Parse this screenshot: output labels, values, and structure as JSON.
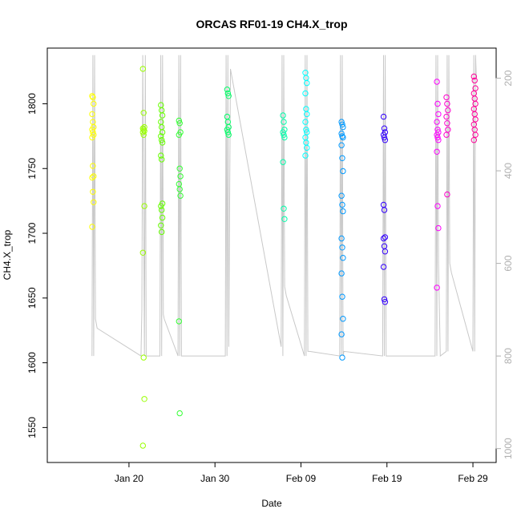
{
  "chart_data": {
    "type": "scatter",
    "title": "ORCAS RF01-19 CH4.X_trop",
    "xlabel": "Date",
    "ylabel": "CH4.X_trop",
    "x_ticks": [
      {
        "label": "Jan 20",
        "day": 19
      },
      {
        "label": "Jan 30",
        "day": 29
      },
      {
        "label": "Feb 09",
        "day": 39
      },
      {
        "label": "Feb 19",
        "day": 49
      },
      {
        "label": "Feb 29",
        "day": 59
      }
    ],
    "xlim_days": [
      9.5,
      61.7
    ],
    "ylim": [
      1523,
      1843
    ],
    "y_ticks": [
      1550,
      1600,
      1650,
      1700,
      1750,
      1800
    ],
    "right_axis": {
      "ticks": [
        200,
        400,
        600,
        800,
        1000
      ],
      "range": [
        1030,
        135
      ],
      "color": "#b0b0b0"
    },
    "flights": [
      {
        "day": 14.8,
        "color": "#ffff00",
        "values": [
          1806,
          1805,
          1800,
          1792,
          1786,
          1782,
          1780,
          1778,
          1776,
          1774,
          1752,
          1744,
          1743,
          1732,
          1724,
          1705
        ]
      },
      {
        "day": 20.7,
        "color": "#99ff00",
        "values": [
          1827,
          1793,
          1782,
          1781,
          1780,
          1779,
          1778,
          1776,
          1721,
          1685,
          1604,
          1572,
          1536
        ]
      },
      {
        "day": 22.8,
        "color": "#66ff00",
        "values": [
          1799,
          1795,
          1791,
          1786,
          1782,
          1778,
          1775,
          1772,
          1770,
          1760,
          1757,
          1723,
          1721,
          1718,
          1712,
          1706,
          1701
        ]
      },
      {
        "day": 24.9,
        "color": "#33ff33",
        "values": [
          1787,
          1785,
          1778,
          1776,
          1750,
          1744,
          1738,
          1734,
          1729,
          1632,
          1561
        ]
      },
      {
        "day": 30.5,
        "color": "#00ff66",
        "values": [
          1811,
          1808,
          1806,
          1790,
          1786,
          1782,
          1780,
          1778,
          1776
        ]
      },
      {
        "day": 37.0,
        "color": "#00ffaa",
        "values": [
          1791,
          1786,
          1780,
          1778,
          1776,
          1774,
          1755,
          1719,
          1711
        ]
      },
      {
        "day": 39.6,
        "color": "#00ffff",
        "values": [
          1824,
          1820,
          1816,
          1808,
          1796,
          1792,
          1786,
          1780,
          1778,
          1774,
          1770,
          1766,
          1760
        ]
      },
      {
        "day": 43.8,
        "color": "#0099ff",
        "values": [
          1786,
          1784,
          1782,
          1777,
          1775,
          1774,
          1768,
          1758,
          1748,
          1729,
          1722,
          1717,
          1696,
          1689,
          1681,
          1669,
          1651,
          1634,
          1622,
          1604
        ]
      },
      {
        "day": 48.7,
        "color": "#3300ff",
        "values": [
          1790,
          1781,
          1778,
          1776,
          1774,
          1772,
          1722,
          1718,
          1697,
          1696,
          1690,
          1686,
          1674,
          1649,
          1647
        ]
      },
      {
        "day": 54.9,
        "color": "#ff00ff",
        "values": [
          1817,
          1800,
          1792,
          1786,
          1780,
          1778,
          1776,
          1774,
          1772,
          1763,
          1721,
          1704,
          1658
        ]
      },
      {
        "day": 56.0,
        "color": "#ff00cc",
        "values": [
          1805,
          1800,
          1795,
          1790,
          1785,
          1780,
          1776,
          1730
        ]
      },
      {
        "day": 59.2,
        "color": "#ff0099",
        "values": [
          1821,
          1818,
          1812,
          1808,
          1804,
          1800,
          1796,
          1792,
          1788,
          1784,
          1780,
          1776,
          1772
        ]
      }
    ],
    "altitude_trace": {
      "color": "#c8c8c8",
      "points": [
        [
          14.7,
          800
        ],
        [
          14.8,
          150
        ],
        [
          14.9,
          800
        ],
        [
          15.0,
          150
        ],
        [
          15.1,
          720
        ],
        [
          15.3,
          740
        ],
        [
          20.4,
          800
        ],
        [
          20.5,
          700
        ],
        [
          20.6,
          150
        ],
        [
          20.8,
          800
        ],
        [
          20.9,
          150
        ],
        [
          21.0,
          800
        ],
        [
          22.6,
          800
        ],
        [
          22.7,
          150
        ],
        [
          22.8,
          800
        ],
        [
          22.9,
          150
        ],
        [
          23.0,
          710
        ],
        [
          23.1,
          720
        ],
        [
          24.7,
          800
        ],
        [
          24.8,
          150
        ],
        [
          24.9,
          800
        ],
        [
          25.0,
          150
        ],
        [
          25.1,
          800
        ],
        [
          30.2,
          800
        ],
        [
          30.3,
          150
        ],
        [
          30.4,
          800
        ],
        [
          30.5,
          150
        ],
        [
          30.6,
          780
        ],
        [
          30.8,
          180
        ],
        [
          36.7,
          780
        ],
        [
          36.8,
          150
        ],
        [
          36.9,
          800
        ],
        [
          37.0,
          150
        ],
        [
          37.1,
          650
        ],
        [
          37.3,
          670
        ],
        [
          39.4,
          800
        ],
        [
          39.5,
          150
        ],
        [
          39.6,
          800
        ],
        [
          39.7,
          150
        ],
        [
          39.8,
          790
        ],
        [
          40.0,
          790
        ],
        [
          43.5,
          800
        ],
        [
          43.6,
          150
        ],
        [
          43.7,
          800
        ],
        [
          43.8,
          150
        ],
        [
          43.9,
          800
        ],
        [
          44.0,
          790
        ],
        [
          48.5,
          800
        ],
        [
          48.6,
          150
        ],
        [
          48.7,
          800
        ],
        [
          48.8,
          150
        ],
        [
          48.9,
          800
        ],
        [
          54.6,
          800
        ],
        [
          54.7,
          150
        ],
        [
          54.8,
          800
        ],
        [
          54.9,
          150
        ],
        [
          55.0,
          600
        ],
        [
          55.2,
          800
        ],
        [
          55.9,
          790
        ],
        [
          56.0,
          150
        ],
        [
          56.1,
          790
        ],
        [
          56.2,
          150
        ],
        [
          56.3,
          600
        ],
        [
          56.5,
          620
        ],
        [
          59.0,
          790
        ],
        [
          59.1,
          150
        ],
        [
          59.2,
          790
        ],
        [
          59.3,
          150
        ],
        [
          59.4,
          200
        ]
      ]
    },
    "grid": false,
    "legend": "none"
  }
}
